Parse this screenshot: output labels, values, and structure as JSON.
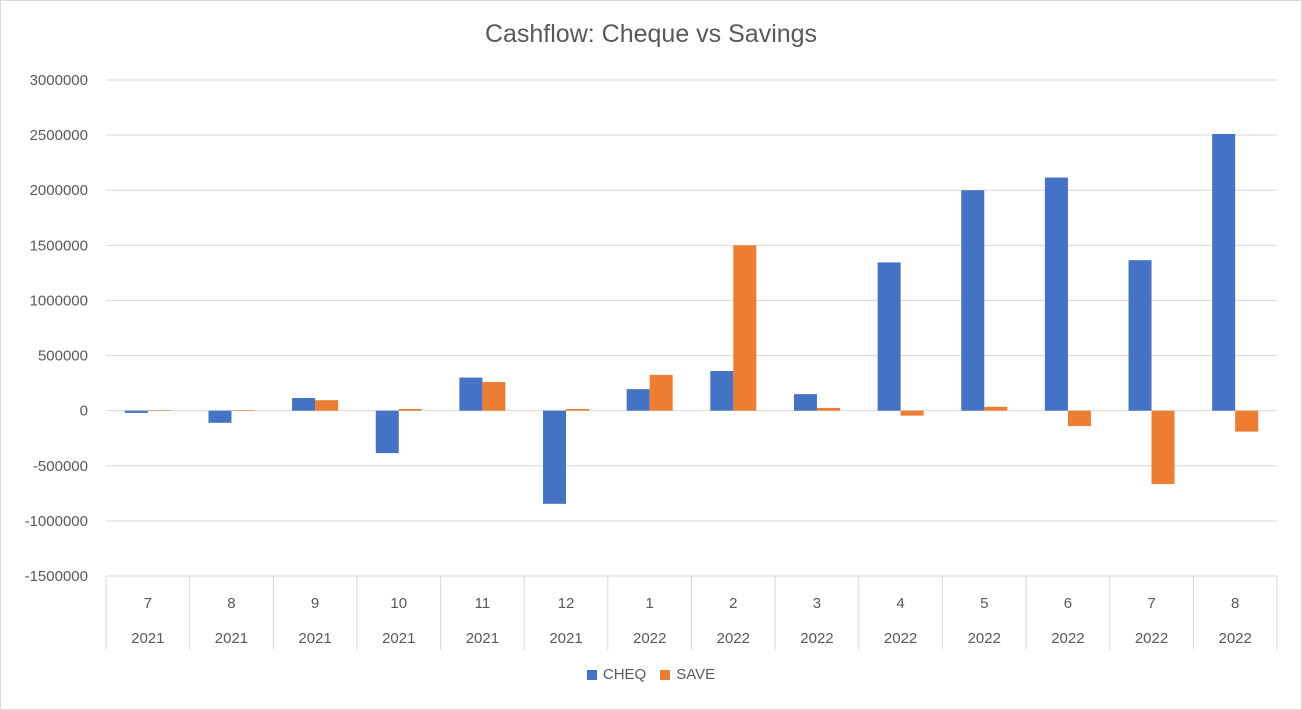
{
  "chart_data": {
    "type": "bar",
    "title": "Cashflow: Cheque vs Savings",
    "categories": [
      {
        "month": "7",
        "year": "2021"
      },
      {
        "month": "8",
        "year": "2021"
      },
      {
        "month": "9",
        "year": "2021"
      },
      {
        "month": "10",
        "year": "2021"
      },
      {
        "month": "11",
        "year": "2021"
      },
      {
        "month": "12",
        "year": "2021"
      },
      {
        "month": "1",
        "year": "2022"
      },
      {
        "month": "2",
        "year": "2022"
      },
      {
        "month": "3",
        "year": "2022"
      },
      {
        "month": "4",
        "year": "2022"
      },
      {
        "month": "5",
        "year": "2022"
      },
      {
        "month": "6",
        "year": "2022"
      },
      {
        "month": "7",
        "year": "2022"
      },
      {
        "month": "8",
        "year": "2022"
      }
    ],
    "series": [
      {
        "name": "CHEQ",
        "color": "#4472c4",
        "values": [
          -20000,
          -110000,
          115000,
          -385000,
          300000,
          -845000,
          195000,
          360000,
          150000,
          1345000,
          2000000,
          2115000,
          1365000,
          2510000
        ]
      },
      {
        "name": "SAVE",
        "color": "#ed7d31",
        "values": [
          5000,
          5000,
          95000,
          15000,
          260000,
          15000,
          325000,
          1500000,
          25000,
          -45000,
          35000,
          -140000,
          -665000,
          -190000
        ]
      }
    ],
    "ylim": [
      -1500000,
      3000000
    ],
    "yticks": [
      "3000000",
      "2500000",
      "2000000",
      "1500000",
      "1000000",
      "500000",
      "0",
      "-500000",
      "-1000000",
      "-1500000"
    ],
    "grid": true,
    "legend_position": "bottom"
  }
}
